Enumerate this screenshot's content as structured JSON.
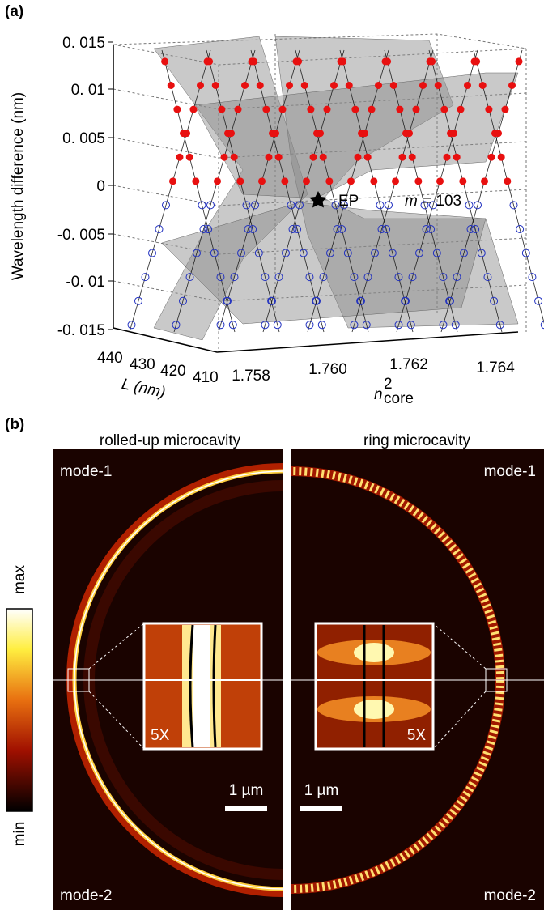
{
  "panel_a": {
    "label": "(a)",
    "y_axis_label": "Wavelength difference (nm)",
    "y_ticks": [
      "0. 015",
      "0. 01",
      "0. 005",
      "0",
      "-0. 005",
      "-0. 01",
      "-0. 015"
    ],
    "l_axis_label": "L (nm)",
    "l_ticks": [
      "440",
      "430",
      "420",
      "410"
    ],
    "n_axis_label": {
      "symbol": "n",
      "superscript": "2",
      "subscript": "core"
    },
    "n_ticks": [
      "1.758",
      "1.760",
      "1.762",
      "1.764"
    ],
    "ep_label": "EP",
    "m_label": {
      "symbol": "m",
      "text": "= 103"
    }
  },
  "panel_b": {
    "label": "(b)",
    "left_title": "rolled-up microcavity",
    "right_title": "ring microcavity",
    "colorbar_max": "max",
    "colorbar_min": "min",
    "left_top": "mode-1",
    "left_bottom": "mode-2",
    "right_top": "mode-1",
    "right_bottom": "mode-2",
    "left_zoom": "5X",
    "right_zoom": "5X",
    "left_scale": "1 µm",
    "right_scale": "1 µm"
  }
}
